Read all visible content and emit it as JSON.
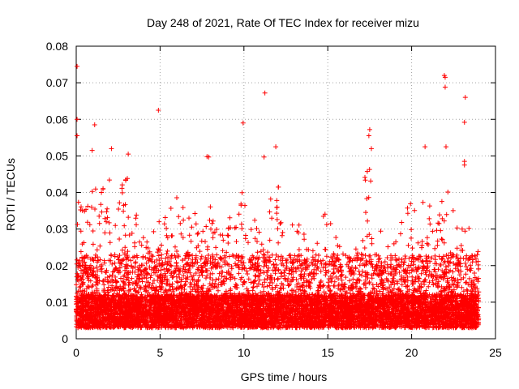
{
  "chart_data": {
    "type": "scatter",
    "title": "Day 248 of 2021, Rate Of TEC Index for receiver mizu",
    "xlabel": "GPS time / hours",
    "ylabel": "ROTI / TECUs",
    "xlim": [
      0,
      25
    ],
    "ylim": [
      0,
      0.08
    ],
    "xticks": [
      "0",
      "5",
      "10",
      "15",
      "20",
      "25"
    ],
    "yticks": [
      "0",
      "0.01",
      "0.02",
      "0.03",
      "0.04",
      "0.05",
      "0.06",
      "0.07",
      "0.08"
    ],
    "grid": true,
    "marker": "plus",
    "color": "#ff0000",
    "approx_envelope": {
      "hours": [
        0,
        0.5,
        1,
        1.5,
        2,
        2.5,
        3,
        3.5,
        4,
        4.5,
        5,
        5.5,
        6,
        6.5,
        7,
        7.5,
        8,
        8.5,
        9,
        9.5,
        10,
        10.5,
        11,
        11.5,
        12,
        12.5,
        13,
        13.5,
        14,
        14.5,
        15,
        15.5,
        16,
        16.5,
        17,
        17.5,
        18,
        18.5,
        19,
        19.5,
        20,
        20.5,
        21,
        21.5,
        22,
        22.5,
        23,
        23.5,
        24
      ],
      "upper_roti": [
        0.042,
        0.036,
        0.05,
        0.04,
        0.048,
        0.042,
        0.046,
        0.035,
        0.03,
        0.03,
        0.034,
        0.038,
        0.042,
        0.036,
        0.036,
        0.03,
        0.038,
        0.032,
        0.034,
        0.038,
        0.042,
        0.032,
        0.034,
        0.036,
        0.048,
        0.04,
        0.034,
        0.032,
        0.03,
        0.034,
        0.036,
        0.028,
        0.024,
        0.022,
        0.04,
        0.05,
        0.032,
        0.028,
        0.026,
        0.034,
        0.038,
        0.04,
        0.036,
        0.038,
        0.044,
        0.038,
        0.032,
        0.03,
        0.026
      ],
      "lower_roti": 0.003
    },
    "outliers": [
      {
        "x": 0.05,
        "y": 0.0745
      },
      {
        "x": 0.05,
        "y": 0.06
      },
      {
        "x": 0.05,
        "y": 0.0555
      },
      {
        "x": 4.9,
        "y": 0.0625
      },
      {
        "x": 7.8,
        "y": 0.0498
      },
      {
        "x": 7.9,
        "y": 0.0497
      },
      {
        "x": 9.95,
        "y": 0.059
      },
      {
        "x": 11.25,
        "y": 0.0672
      },
      {
        "x": 11.2,
        "y": 0.0497
      },
      {
        "x": 11.9,
        "y": 0.0525
      },
      {
        "x": 17.5,
        "y": 0.0572
      },
      {
        "x": 17.45,
        "y": 0.0555
      },
      {
        "x": 21.95,
        "y": 0.072
      },
      {
        "x": 22.0,
        "y": 0.0715
      },
      {
        "x": 22.0,
        "y": 0.0688
      },
      {
        "x": 22.05,
        "y": 0.0525
      },
      {
        "x": 23.2,
        "y": 0.066
      },
      {
        "x": 23.15,
        "y": 0.0592
      },
      {
        "x": 23.15,
        "y": 0.0485
      },
      {
        "x": 23.15,
        "y": 0.0475
      },
      {
        "x": 1.1,
        "y": 0.0585
      },
      {
        "x": 0.95,
        "y": 0.0515
      },
      {
        "x": 2.1,
        "y": 0.052
      },
      {
        "x": 3.1,
        "y": 0.0505
      },
      {
        "x": 17.6,
        "y": 0.052
      },
      {
        "x": 20.8,
        "y": 0.0525
      }
    ]
  }
}
